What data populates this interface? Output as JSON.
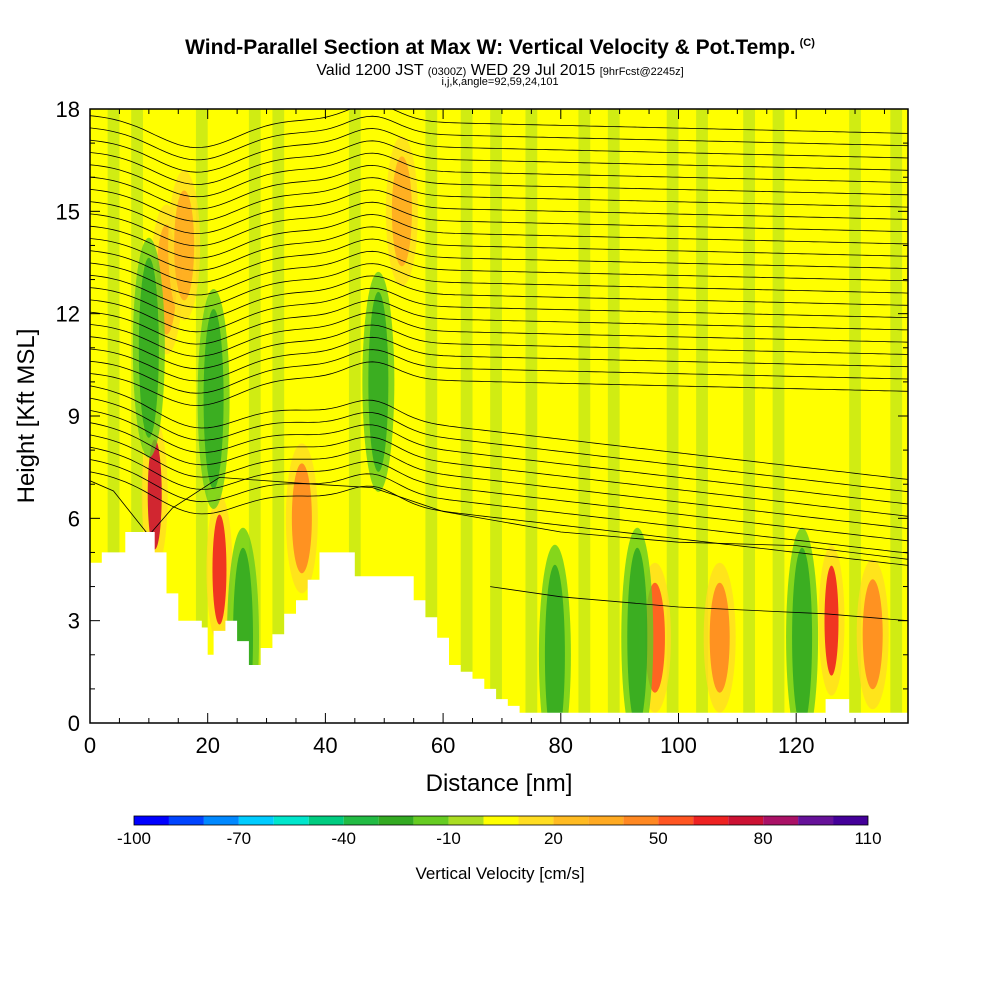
{
  "header": {
    "title": "Wind-Parallel Section at Max W: Vertical Velocity & Pot.Temp.",
    "copyright": "(C)",
    "valid_prefix": "Valid 1200 JST",
    "valid_utc": "(0300Z)",
    "valid_date": "WED 29 Jul 2015",
    "forecast": "[9hrFcst@2245z]",
    "grid_info": "i,j,k,angle=92,59,24,101"
  },
  "colorbar": {
    "title": "Vertical Velocity [cm/s]",
    "min": -100,
    "max": 110,
    "step": 10,
    "labels": [
      "-100",
      "-70",
      "-40",
      "-10",
      "20",
      "50",
      "80",
      "110"
    ],
    "colors": [
      "#0000ff",
      "#0044ff",
      "#0088ff",
      "#00ccff",
      "#00e6cc",
      "#00cc80",
      "#22bb44",
      "#33aa22",
      "#66cc22",
      "#aadd22",
      "#ffff00",
      "#ffdd22",
      "#ffbb22",
      "#ffaa22",
      "#ff8822",
      "#ff5522",
      "#ee2222",
      "#cc1133",
      "#aa1166",
      "#661199",
      "#440099"
    ]
  },
  "chart_data": {
    "type": "heatmap",
    "title": "Wind-Parallel Section at Max W: Vertical Velocity & Pot.Temp.",
    "xlabel": "Distance [nm]",
    "ylabel": "Height [Kft MSL]",
    "xlim": [
      0,
      139
    ],
    "ylim": [
      0,
      18
    ],
    "xticks": [
      0,
      20,
      40,
      60,
      80,
      100,
      120
    ],
    "yticks": [
      0,
      3,
      6,
      9,
      12,
      15,
      18
    ],
    "xtick_labels": [
      "0",
      "20",
      "40",
      "60",
      "80",
      "100",
      "120"
    ],
    "ytick_labels": [
      "0",
      "3",
      "6",
      "9",
      "12",
      "15",
      "18"
    ],
    "terrain": {
      "distance_nm": [
        0,
        2,
        6,
        9,
        11,
        13,
        15,
        19,
        20,
        21,
        23,
        25,
        27,
        29,
        31,
        33,
        35,
        37,
        39,
        41,
        43,
        45,
        49,
        53,
        55,
        57,
        59,
        61,
        63,
        65,
        67,
        69,
        71,
        73,
        77,
        81,
        91,
        101,
        111,
        121,
        125,
        129,
        133,
        139
      ],
      "height_kft": [
        4.7,
        5.0,
        5.6,
        5.6,
        5.0,
        3.8,
        3.0,
        2.8,
        2.0,
        2.7,
        3.0,
        2.4,
        1.7,
        2.2,
        2.6,
        3.2,
        3.6,
        4.2,
        5.0,
        5.0,
        5.0,
        4.3,
        4.3,
        4.3,
        3.6,
        3.1,
        2.5,
        1.7,
        1.5,
        1.3,
        1.0,
        0.7,
        0.5,
        0.3,
        0.3,
        0.3,
        0.3,
        0.3,
        0.3,
        0.3,
        0.7,
        0.3,
        0.3,
        0.3
      ]
    },
    "velocity_cores_cm_s": [
      {
        "x": 11,
        "y": 6.7,
        "w": 72
      },
      {
        "x": 13,
        "y": 13,
        "w": 35
      },
      {
        "x": 16,
        "y": 14,
        "w": 30
      },
      {
        "x": 22,
        "y": 4.5,
        "w": 62
      },
      {
        "x": 36,
        "y": 6,
        "w": 42
      },
      {
        "x": 53,
        "y": 15,
        "w": 30
      },
      {
        "x": 96,
        "y": 2.5,
        "w": 50
      },
      {
        "x": 107,
        "y": 2.5,
        "w": 42
      },
      {
        "x": 126,
        "y": 3,
        "w": 62
      },
      {
        "x": 133,
        "y": 2.6,
        "w": 42
      },
      {
        "x": 10,
        "y": 11,
        "w": -30
      },
      {
        "x": 21,
        "y": 9.5,
        "w": -30
      },
      {
        "x": 26,
        "y": 2.5,
        "w": -30
      },
      {
        "x": 49,
        "y": 10,
        "w": -30
      },
      {
        "x": 79,
        "y": 2,
        "w": -30
      },
      {
        "x": 93,
        "y": 2.5,
        "w": -30
      },
      {
        "x": 121,
        "y": 2.5,
        "w": -30
      }
    ],
    "potential_temperature_contours": true
  }
}
